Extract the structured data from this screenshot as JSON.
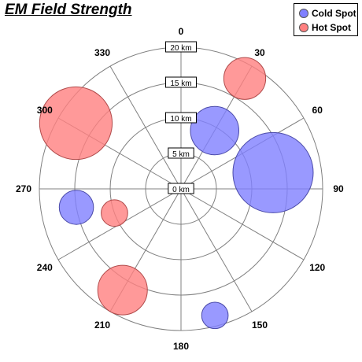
{
  "chart_data": {
    "type": "scatter",
    "subtype": "polar-bubble",
    "title": "EM Field Strength",
    "angle_labels": [
      "0",
      "30",
      "60",
      "90",
      "120",
      "150",
      "180",
      "210",
      "240",
      "270",
      "300",
      "330"
    ],
    "radial_labels": [
      "0 km",
      "5 km",
      "10 km",
      "15 km",
      "20 km"
    ],
    "radial_range": [
      0,
      20
    ],
    "grid": true,
    "legend_position": "top-right",
    "series": [
      {
        "name": "Cold Spot",
        "color": "#8080ff",
        "points": [
          {
            "angle": 30,
            "radius": 9.5,
            "size": 2
          },
          {
            "angle": 80,
            "radius": 13.2,
            "size": 5.5
          },
          {
            "angle": 260,
            "radius": 15,
            "size": 1
          },
          {
            "angle": 165,
            "radius": 18.5,
            "size": 0.6
          }
        ]
      },
      {
        "name": "Hot Spot",
        "color": "#ff8080",
        "points": [
          {
            "angle": 30,
            "radius": 18,
            "size": 1.5
          },
          {
            "angle": 302,
            "radius": 17.5,
            "size": 4.5
          },
          {
            "angle": 250,
            "radius": 10,
            "size": 0.6
          },
          {
            "angle": 210,
            "radius": 16.5,
            "size": 2.1
          }
        ]
      }
    ]
  }
}
